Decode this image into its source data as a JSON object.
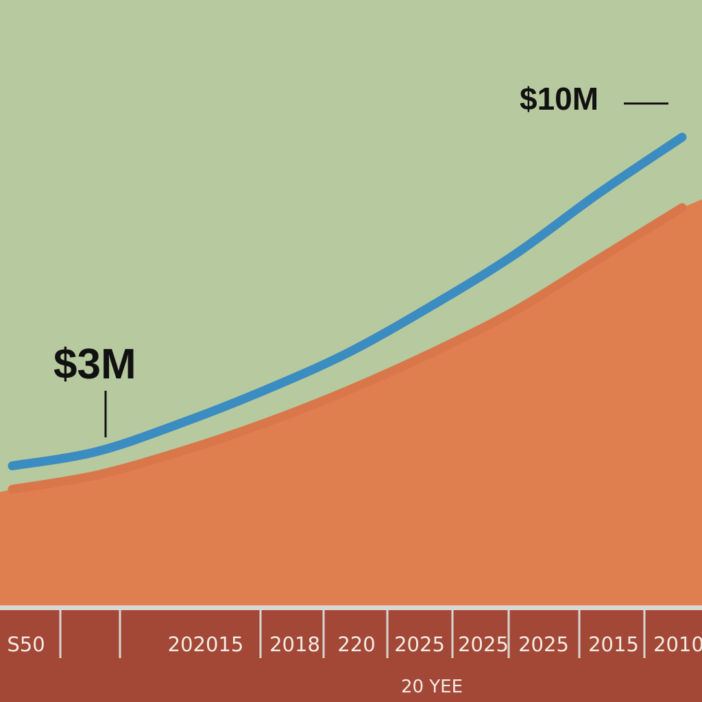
{
  "chart_data": {
    "type": "area",
    "x_ticks": [
      "S50",
      "202015",
      "2018",
      "220",
      "2025",
      "2025",
      "2025",
      "2015",
      "2010"
    ],
    "xlabel": "20 YEE",
    "annotations": [
      {
        "text": "$3M",
        "value": 3
      },
      {
        "text": "$10M",
        "value": 10
      }
    ],
    "series": [
      {
        "color": "#3b8cc0",
        "values": [
          3.0,
          3.3,
          3.9,
          4.6,
          5.4,
          6.4,
          7.5,
          8.8,
          10.0
        ]
      },
      {
        "color": "#d9774a",
        "values": [
          2.5,
          2.8,
          3.3,
          3.9,
          4.6,
          5.4,
          6.3,
          7.4,
          8.5
        ]
      }
    ],
    "ylim": [
      0,
      11
    ]
  },
  "colors": {
    "background": "#b6c99f",
    "area": "#df7f50",
    "axis_band": "#a34736",
    "axis_line": "#d9d7d3",
    "line_primary": "#3b8cc0",
    "line_secondary": "#d9774a"
  }
}
